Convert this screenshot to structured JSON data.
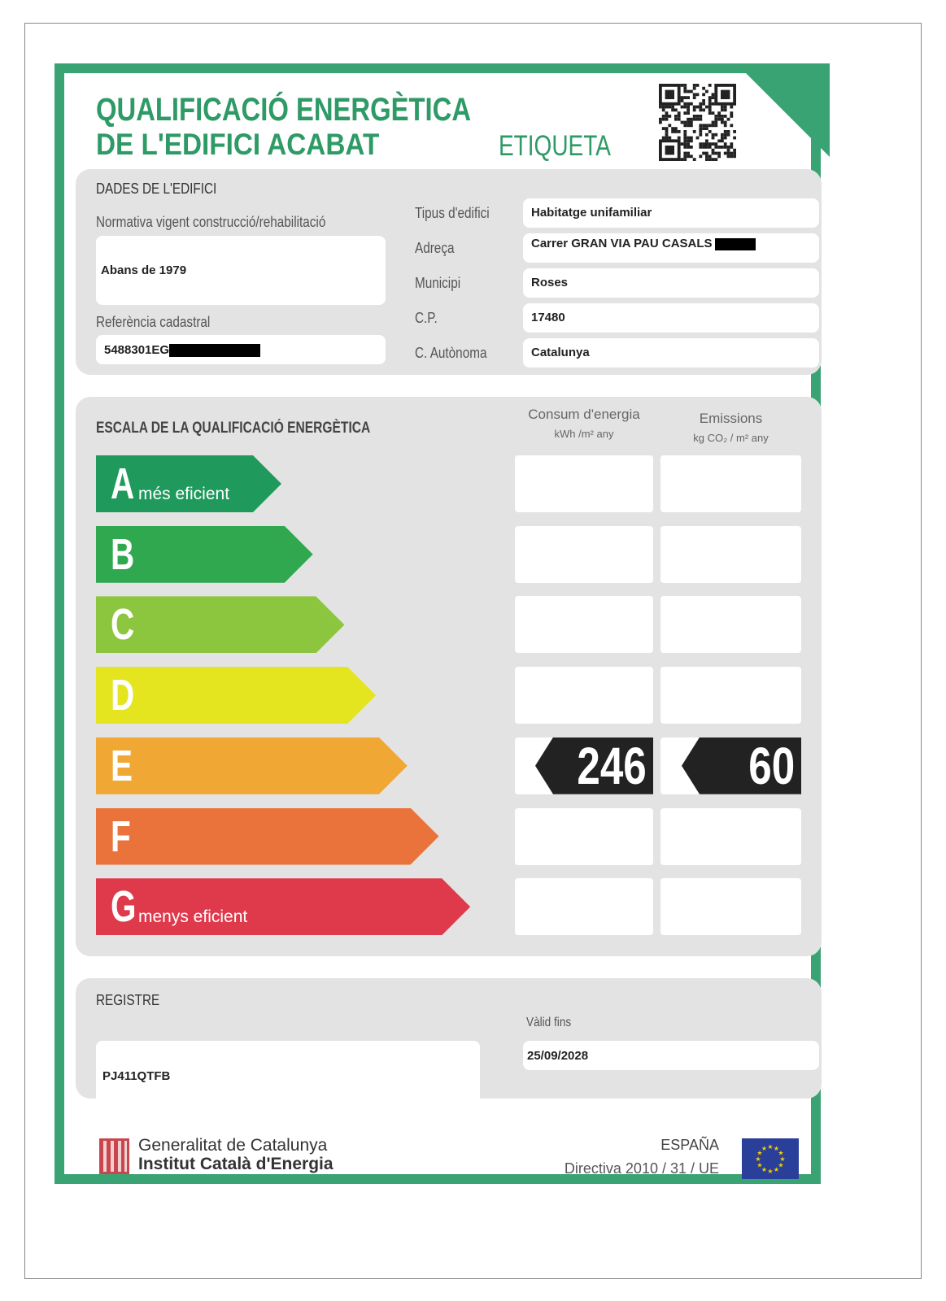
{
  "header": {
    "title_line1": "QUALIFICACIÓ ENERGÈTICA",
    "title_line2": "DE L'EDIFICI ACABAT",
    "label": "ETIQUETA",
    "qr_icon": "qr-code-icon"
  },
  "building": {
    "section_title": "DADES DE L'EDIFICI",
    "normativa_label": "Normativa vigent construcció/rehabilitació",
    "normativa_value": "Abans de 1979",
    "cadastral_label": "Referència cadastral",
    "cadastral_value": "5488301EG",
    "fields": [
      {
        "label": "Tipus d'edifici",
        "value": "Habitatge unifamiliar"
      },
      {
        "label": "Adreça",
        "value": "Carrer GRAN VIA PAU CASALS"
      },
      {
        "label": "Municipi",
        "value": "Roses"
      },
      {
        "label": "C.P.",
        "value": "17480"
      },
      {
        "label": "C. Autònoma",
        "value": "Catalunya"
      }
    ]
  },
  "scale": {
    "title": "ESCALA DE LA QUALIFICACIÓ ENERGÈTICA",
    "col_energy": "Consum d'energia",
    "col_energy_unit": "kWh /m² any",
    "col_emissions": "Emissions",
    "col_emissions_unit": "kg CO₂ / m² any",
    "classes": [
      {
        "letter": "A",
        "text": "més eficient",
        "color": "#1f9a5c"
      },
      {
        "letter": "B",
        "text": "",
        "color": "#2fa84f"
      },
      {
        "letter": "C",
        "text": "",
        "color": "#8cc63e"
      },
      {
        "letter": "D",
        "text": "",
        "color": "#e4e41f"
      },
      {
        "letter": "E",
        "text": "",
        "color": "#f0a733"
      },
      {
        "letter": "F",
        "text": "",
        "color": "#e9733b"
      },
      {
        "letter": "G",
        "text": "menys eficient",
        "color": "#df3a4c"
      }
    ],
    "rating_class": "E",
    "energy_value": "246",
    "emissions_value": "60"
  },
  "registry": {
    "label": "REGISTRE",
    "value": "PJ411QTFB",
    "valid_label": "Vàlid fins",
    "valid_value": "25/09/2028"
  },
  "footer": {
    "org1": "Generalitat de Catalunya",
    "org2": "Institut Català d'Energia",
    "country": "ESPAÑA",
    "directive": "Directiva 2010 / 31 / UE"
  },
  "colors": {
    "brand_green": "#3aa373",
    "panel_gray": "#e3e3e3"
  }
}
